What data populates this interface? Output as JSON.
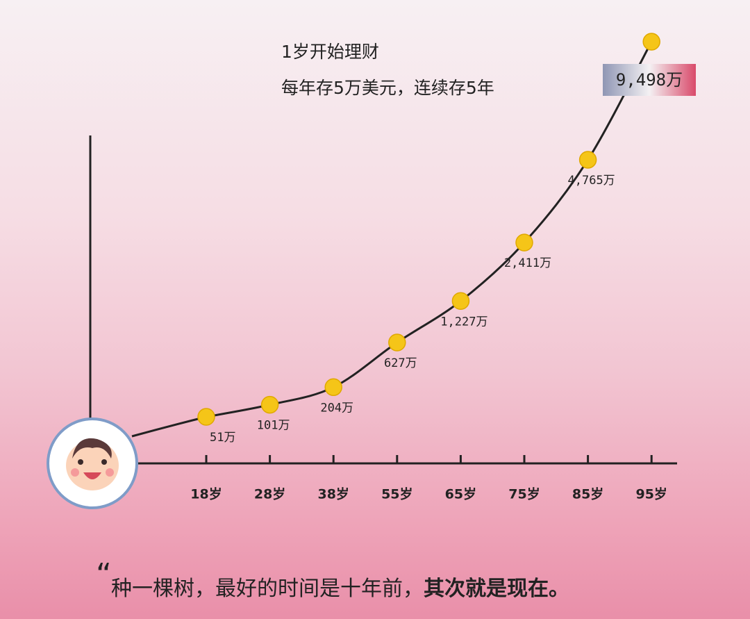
{
  "chart_data": {
    "type": "line",
    "title": "1岁开始理财",
    "subtitle": "每年存5万美元，连续存5年",
    "categories": [
      "18岁",
      "28岁",
      "38岁",
      "55岁",
      "65岁",
      "75岁",
      "85岁",
      "95岁"
    ],
    "series": [
      {
        "color": "#f5c518",
        "values": [
          51,
          101,
          204,
          627,
          1227,
          2411,
          4765,
          9498
        ],
        "value_labels": [
          "51万",
          "101万",
          "204万",
          "627万",
          "1,227万",
          "2,411万",
          "4,765万",
          "9,498万"
        ]
      }
    ]
  },
  "quote": {
    "open_mark": "“",
    "text": "种一棵树，最好的时间是十年前，",
    "emphasis": "其次就是现在。"
  }
}
